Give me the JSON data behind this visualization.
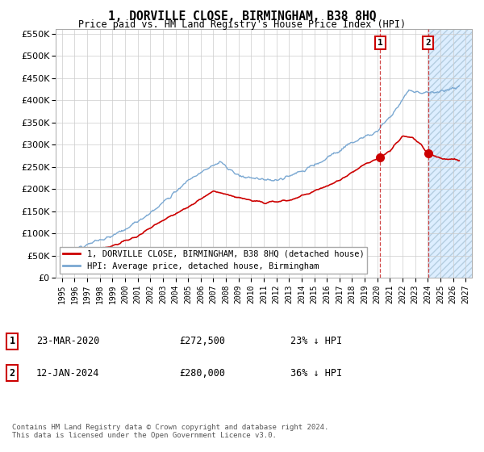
{
  "title": "1, DORVILLE CLOSE, BIRMINGHAM, B38 8HQ",
  "subtitle": "Price paid vs. HM Land Registry's House Price Index (HPI)",
  "legend_label_red": "1, DORVILLE CLOSE, BIRMINGHAM, B38 8HQ (detached house)",
  "legend_label_blue": "HPI: Average price, detached house, Birmingham",
  "footer": "Contains HM Land Registry data © Crown copyright and database right 2024.\nThis data is licensed under the Open Government Licence v3.0.",
  "sale1_date": "23-MAR-2020",
  "sale1_price": 272500,
  "sale2_date": "12-JAN-2024",
  "sale2_price": 280000,
  "sale1_x": 2020.22,
  "sale2_x": 2024.03,
  "ylim": [
    0,
    560000
  ],
  "xlim_start": 1994.5,
  "xlim_end": 2027.5,
  "hatch_start": 2024.03,
  "background_color": "#ffffff",
  "grid_color": "#cccccc",
  "red_color": "#cc0000",
  "blue_color": "#7aa8d2",
  "marker_box_color": "#cc0000",
  "hatched_region_facecolor": "#ddeeff",
  "dashed_line_color": "#cc3333"
}
